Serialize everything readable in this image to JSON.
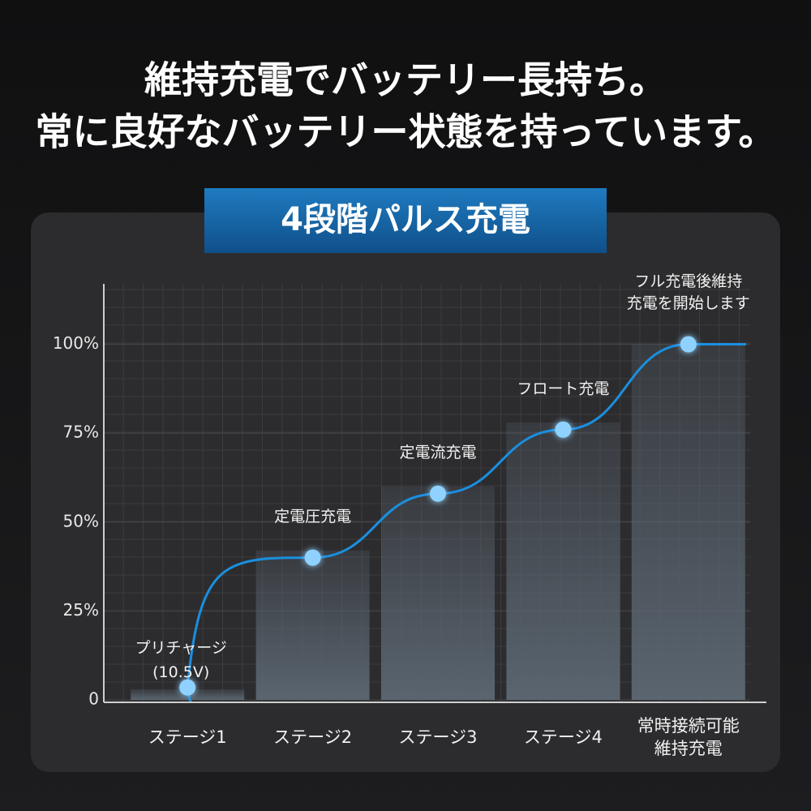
{
  "title": [
    "維持充電でバッテリー長持ち。",
    "常に良好なバッテリー状態を持っています。"
  ],
  "chart_data": {
    "type": "combo",
    "title": "4段階パルス充電",
    "categories": [
      [
        "ステージ1"
      ],
      [
        "ステージ2"
      ],
      [
        "ステージ3"
      ],
      [
        "ステージ4"
      ],
      [
        "常時接続可能",
        "維持充電"
      ]
    ],
    "series": [
      {
        "type": "bar",
        "color": "#5a6570",
        "values": [
          3,
          42,
          60,
          78,
          100
        ]
      },
      {
        "type": "line",
        "color": "#1a8fe0",
        "point_color": "#8fd2ff",
        "values": [
          3.5,
          40,
          58,
          76,
          100
        ],
        "point_labels": [
          [
            "プリチャージ",
            "(10.5V)"
          ],
          [
            "定電圧充電"
          ],
          [
            "定電流充電"
          ],
          [
            "フロート充電"
          ],
          [
            "フル充電後維持",
            "充電を開始します"
          ]
        ]
      }
    ],
    "ylim": [
      0,
      117
    ],
    "yticks": [
      {
        "value": 0,
        "label": "0"
      },
      {
        "value": 25,
        "label": "25%"
      },
      {
        "value": 50,
        "label": "50%"
      },
      {
        "value": 75,
        "label": "75%"
      },
      {
        "value": 100,
        "label": "100%"
      }
    ],
    "grid": true
  }
}
